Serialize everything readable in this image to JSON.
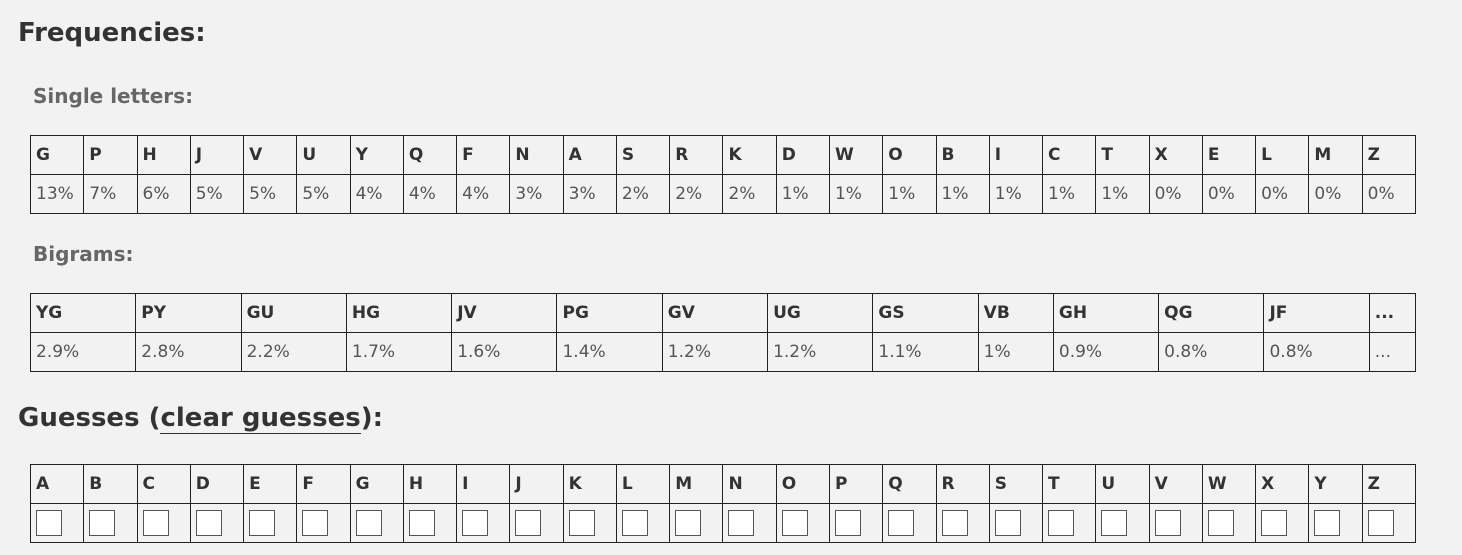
{
  "freq_heading": "Frequencies:",
  "single_heading": "Single letters:",
  "single": {
    "letters": [
      "G",
      "P",
      "H",
      "J",
      "V",
      "U",
      "Y",
      "Q",
      "F",
      "N",
      "A",
      "S",
      "R",
      "K",
      "D",
      "W",
      "O",
      "B",
      "I",
      "C",
      "T",
      "X",
      "E",
      "L",
      "M",
      "Z"
    ],
    "percents": [
      "13%",
      "7%",
      "6%",
      "5%",
      "5%",
      "5%",
      "4%",
      "4%",
      "4%",
      "3%",
      "3%",
      "2%",
      "2%",
      "2%",
      "1%",
      "1%",
      "1%",
      "1%",
      "1%",
      "1%",
      "1%",
      "0%",
      "0%",
      "0%",
      "0%",
      "0%"
    ]
  },
  "bigrams_heading": "Bigrams:",
  "bigrams": {
    "pairs": [
      "YG",
      "PY",
      "GU",
      "HG",
      "JV",
      "PG",
      "GV",
      "UG",
      "GS",
      "VB",
      "GH",
      "QG",
      "JF",
      "..."
    ],
    "percents": [
      "2.9%",
      "2.8%",
      "2.2%",
      "1.7%",
      "1.6%",
      "1.4%",
      "1.2%",
      "1.2%",
      "1.1%",
      "1%",
      "0.9%",
      "0.8%",
      "0.8%",
      "..."
    ]
  },
  "guesses": {
    "heading_prefix": "Guesses (",
    "clear_label": "clear guesses",
    "heading_suffix": "):",
    "letters": [
      "A",
      "B",
      "C",
      "D",
      "E",
      "F",
      "G",
      "H",
      "I",
      "J",
      "K",
      "L",
      "M",
      "N",
      "O",
      "P",
      "Q",
      "R",
      "S",
      "T",
      "U",
      "V",
      "W",
      "X",
      "Y",
      "Z"
    ]
  }
}
